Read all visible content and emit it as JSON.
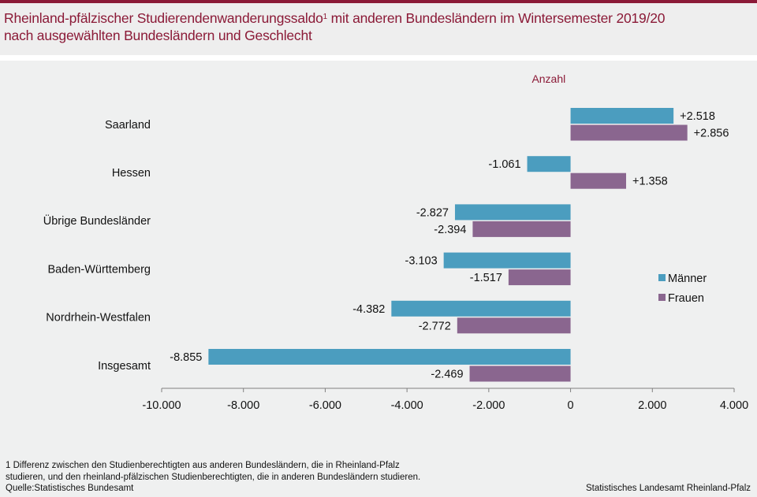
{
  "header": {
    "title_part1": "Rheinland-pfälzischer Studierendenwanderungssaldo",
    "title_sup": "1",
    "title_part2": " mit anderen Bundesländern im Wintersemester 2019/20",
    "title_line2": "nach ausgewählten Bundesländern und Geschlecht"
  },
  "colors": {
    "brand": "#8b1a37",
    "maenner": "#4b9dbf",
    "frauen": "#8a668f",
    "axis": "#808080",
    "text": "#111111"
  },
  "chart_data": {
    "type": "bar",
    "orientation": "horizontal",
    "unit_label": "Anzahl",
    "categories": [
      "Saarland",
      "Hessen",
      "Übrige Bundesländer",
      "Baden-Württemberg",
      "Nordrhein-Westfalen",
      "Insgesamt"
    ],
    "series": [
      {
        "name": "Männer",
        "values": [
          2518,
          -1061,
          -2827,
          -3103,
          -4382,
          -8855
        ],
        "labels": [
          "+2.518",
          "-1.061",
          "-2.827",
          "-3.103",
          "-4.382",
          "-8.855"
        ]
      },
      {
        "name": "Frauen",
        "values": [
          2856,
          1358,
          -2394,
          -1517,
          -2772,
          -2469
        ],
        "labels": [
          "+2.856",
          "+1.358",
          "-2.394",
          "-1.517",
          "-2.772",
          "-2.469"
        ]
      }
    ],
    "xlim": [
      -10000,
      4000
    ],
    "xticks": [
      -10000,
      -8000,
      -6000,
      -4000,
      -2000,
      0,
      2000,
      4000
    ],
    "xtick_labels": [
      "-10.000",
      "-8.000",
      "-6.000",
      "-4.000",
      "-2.000",
      "0",
      "2.000",
      "4.000"
    ],
    "grid": false,
    "legend": "right"
  },
  "footer": {
    "note_line1": "1 Differenz  zwischen den Studienberechtigten  aus anderen  Bundesländern,  die in Rheinland-Pfalz",
    "note_line2": "studieren, und den rheinland-pfälzischen  Studienberechtigten,  die in anderen  Bundesländern  studieren.",
    "source": "Quelle:Statistisches Bundesamt",
    "publisher": "Statistisches Landesamt Rheinland-Pfalz"
  }
}
